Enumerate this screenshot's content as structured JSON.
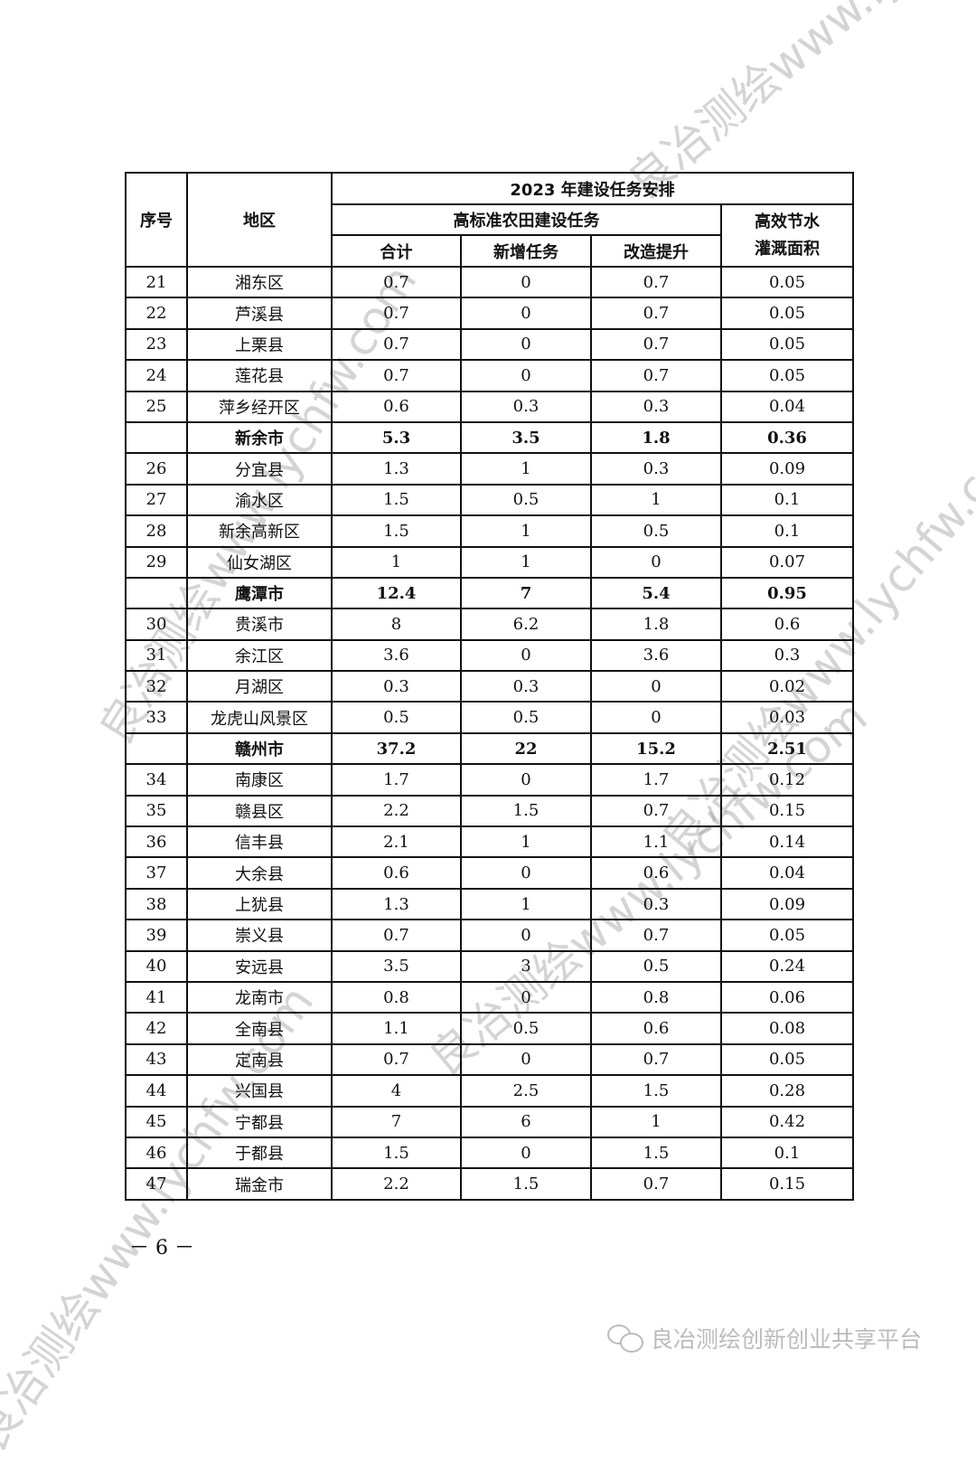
{
  "table": {
    "header": {
      "seq": "序号",
      "region": "地区",
      "group": "2023 年建设任务安排",
      "subgroup": "高标准农田建设任务",
      "water": "高效节水灌溉面积",
      "total": "合计",
      "new": "新增任务",
      "upgrade": "改造提升"
    },
    "rows": [
      [
        "21",
        "湘东区",
        "0.7",
        "0",
        "0.7",
        "0.05"
      ],
      [
        "22",
        "芦溪县",
        "0.7",
        "0",
        "0.7",
        "0.05"
      ],
      [
        "23",
        "上栗县",
        "0.7",
        "0",
        "0.7",
        "0.05"
      ],
      [
        "24",
        "莲花县",
        "0.7",
        "0",
        "0.7",
        "0.05"
      ],
      [
        "25",
        "萍乡经开区",
        "0.6",
        "0.3",
        "0.3",
        "0.04"
      ],
      [
        "",
        "新余市",
        "5.3",
        "3.5",
        "1.8",
        "0.36"
      ],
      [
        "26",
        "分宜县",
        "1.3",
        "1",
        "0.3",
        "0.09"
      ],
      [
        "27",
        "渝水区",
        "1.5",
        "0.5",
        "1",
        "0.1"
      ],
      [
        "28",
        "新余高新区",
        "1.5",
        "1",
        "0.5",
        "0.1"
      ],
      [
        "29",
        "仙女湖区",
        "1",
        "1",
        "0",
        "0.07"
      ],
      [
        "",
        "鹰潭市",
        "12.4",
        "7",
        "5.4",
        "0.95"
      ],
      [
        "30",
        "贵溪市",
        "8",
        "6.2",
        "1.8",
        "0.6"
      ],
      [
        "31",
        "余江区",
        "3.6",
        "0",
        "3.6",
        "0.3"
      ],
      [
        "32",
        "月湖区",
        "0.3",
        "0.3",
        "0",
        "0.02"
      ],
      [
        "33",
        "龙虎山风景区",
        "0.5",
        "0.5",
        "0",
        "0.03"
      ],
      [
        "",
        "赣州市",
        "37.2",
        "22",
        "15.2",
        "2.51"
      ],
      [
        "34",
        "南康区",
        "1.7",
        "0",
        "1.7",
        "0.12"
      ],
      [
        "35",
        "赣县区",
        "2.2",
        "1.5",
        "0.7",
        "0.15"
      ],
      [
        "36",
        "信丰县",
        "2.1",
        "1",
        "1.1",
        "0.14"
      ],
      [
        "37",
        "大余县",
        "0.6",
        "0",
        "0.6",
        "0.04"
      ],
      [
        "38",
        "上犹县",
        "1.3",
        "1",
        "0.3",
        "0.09"
      ],
      [
        "39",
        "崇义县",
        "0.7",
        "0",
        "0.7",
        "0.05"
      ],
      [
        "40",
        "安远县",
        "3.5",
        "3",
        "0.5",
        "0.24"
      ],
      [
        "41",
        "龙南市",
        "0.8",
        "0",
        "0.8",
        "0.06"
      ],
      [
        "42",
        "全南县",
        "1.1",
        "0.5",
        "0.6",
        "0.08"
      ],
      [
        "43",
        "定南县",
        "0.7",
        "0",
        "0.7",
        "0.05"
      ],
      [
        "44",
        "兴国县",
        "4",
        "2.5",
        "1.5",
        "0.28"
      ],
      [
        "45",
        "宁都县",
        "7",
        "6",
        "1",
        "0.42"
      ],
      [
        "46",
        "于都县",
        "1.5",
        "0",
        "1.5",
        "0.1"
      ],
      [
        "47",
        "瑞金市",
        "2.2",
        "1.5",
        "0.7",
        "0.15"
      ]
    ]
  },
  "page_number": "－ 6 －",
  "watermark": "良冶测绘www.lychfw.com",
  "footer": {
    "icon": "wechat-icon",
    "text": "良冶测绘创新创业共享平台"
  }
}
